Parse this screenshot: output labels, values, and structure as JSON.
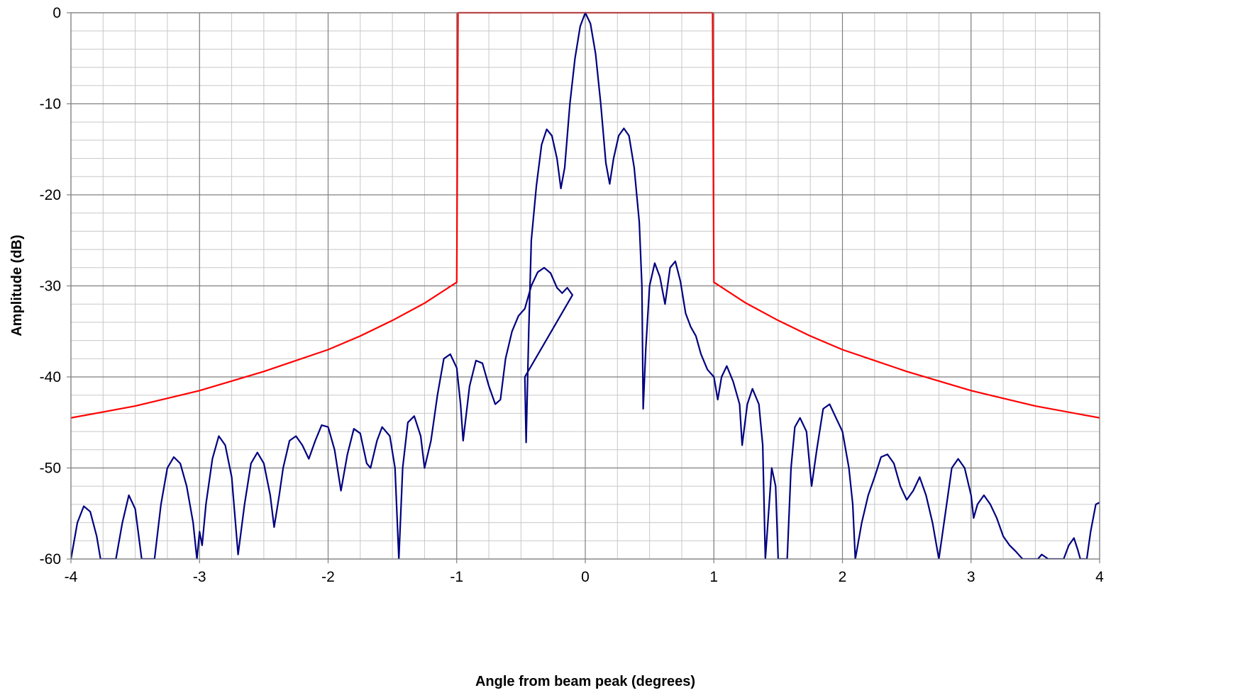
{
  "chart_data": {
    "type": "line",
    "title": "",
    "xlabel": "Angle from beam peak (degrees)",
    "ylabel": "Amplitude (dB)",
    "xlim": [
      -4,
      4
    ],
    "ylim": [
      -60,
      0
    ],
    "x_ticks": [
      -4,
      -3,
      -2,
      -1,
      0,
      1,
      2,
      3,
      4
    ],
    "y_ticks": [
      0,
      -10,
      -20,
      -30,
      -40,
      -50,
      -60
    ],
    "x_tick_labels": [
      "-4",
      "-3",
      "-2",
      "-1",
      "0",
      "1",
      "2",
      "3",
      "4"
    ],
    "y_tick_labels": [
      "0",
      "-10",
      "-20",
      "-30",
      "-40",
      "-50",
      "-60"
    ],
    "grid": {
      "major": true,
      "minor": true,
      "x_minor_step": 0.25,
      "y_minor_step": 2
    },
    "legend": "none",
    "colors": {
      "mask": "#ff0000",
      "pattern": "#000080",
      "major_grid": "#7f7f7f",
      "minor_grid": "#c8c8c8"
    },
    "series": [
      {
        "role": "mask",
        "color": "#ff0000",
        "points": [
          [
            -4.0,
            -44.5
          ],
          [
            -3.5,
            -43.2
          ],
          [
            -3.0,
            -41.5
          ],
          [
            -2.5,
            -39.4
          ],
          [
            -2.0,
            -37.0
          ],
          [
            -1.75,
            -35.5
          ],
          [
            -1.5,
            -33.8
          ],
          [
            -1.25,
            -31.9
          ],
          [
            -1.0,
            -29.6
          ],
          [
            -0.99,
            0
          ],
          [
            0.99,
            0
          ],
          [
            1.0,
            -29.6
          ],
          [
            1.25,
            -31.9
          ],
          [
            1.5,
            -33.8
          ],
          [
            1.75,
            -35.5
          ],
          [
            2.0,
            -37.0
          ],
          [
            2.5,
            -39.4
          ],
          [
            3.0,
            -41.5
          ],
          [
            3.5,
            -43.2
          ],
          [
            4.0,
            -44.5
          ]
        ]
      },
      {
        "role": "pattern",
        "color": "#000080",
        "points": [
          [
            -4.0,
            -60
          ],
          [
            -3.95,
            -56
          ],
          [
            -3.9,
            -54.2
          ],
          [
            -3.85,
            -54.8
          ],
          [
            -3.8,
            -57.5
          ],
          [
            -3.77,
            -60
          ],
          [
            -3.65,
            -60
          ],
          [
            -3.6,
            -56
          ],
          [
            -3.55,
            -53
          ],
          [
            -3.5,
            -54.5
          ],
          [
            -3.45,
            -60
          ],
          [
            -3.35,
            -60
          ],
          [
            -3.3,
            -54
          ],
          [
            -3.25,
            -50
          ],
          [
            -3.2,
            -48.8
          ],
          [
            -3.15,
            -49.5
          ],
          [
            -3.1,
            -52
          ],
          [
            -3.05,
            -56
          ],
          [
            -3.02,
            -60
          ],
          [
            -3.0,
            -57
          ],
          [
            -2.98,
            -58.5
          ],
          [
            -2.95,
            -54
          ],
          [
            -2.9,
            -49
          ],
          [
            -2.85,
            -46.5
          ],
          [
            -2.8,
            -47.5
          ],
          [
            -2.75,
            -51
          ],
          [
            -2.7,
            -59.5
          ],
          [
            -2.65,
            -54
          ],
          [
            -2.6,
            -49.5
          ],
          [
            -2.55,
            -48.3
          ],
          [
            -2.5,
            -49.5
          ],
          [
            -2.45,
            -53
          ],
          [
            -2.42,
            -56.5
          ],
          [
            -2.38,
            -53
          ],
          [
            -2.35,
            -50
          ],
          [
            -2.3,
            -47
          ],
          [
            -2.25,
            -46.5
          ],
          [
            -2.2,
            -47.5
          ],
          [
            -2.15,
            -49
          ],
          [
            -2.1,
            -47
          ],
          [
            -2.05,
            -45.3
          ],
          [
            -2.0,
            -45.5
          ],
          [
            -1.95,
            -48
          ],
          [
            -1.9,
            -52.5
          ],
          [
            -1.85,
            -48.5
          ],
          [
            -1.8,
            -45.7
          ],
          [
            -1.75,
            -46.2
          ],
          [
            -1.7,
            -49.5
          ],
          [
            -1.67,
            -50
          ],
          [
            -1.62,
            -47
          ],
          [
            -1.58,
            -45.5
          ],
          [
            -1.52,
            -46.5
          ],
          [
            -1.48,
            -50
          ],
          [
            -1.45,
            -60
          ],
          [
            -1.42,
            -50
          ],
          [
            -1.38,
            -45
          ],
          [
            -1.33,
            -44.3
          ],
          [
            -1.28,
            -46.5
          ],
          [
            -1.25,
            -50
          ],
          [
            -1.2,
            -47
          ],
          [
            -1.15,
            -42
          ],
          [
            -1.1,
            -38
          ],
          [
            -1.05,
            -37.5
          ],
          [
            -1.0,
            -39
          ],
          [
            -0.97,
            -43
          ],
          [
            -0.95,
            -47
          ],
          [
            -0.9,
            -41
          ],
          [
            -0.85,
            -38.2
          ],
          [
            -0.8,
            -38.5
          ],
          [
            -0.75,
            -41
          ],
          [
            -0.7,
            -43
          ],
          [
            -0.66,
            -42.5
          ],
          [
            -0.62,
            -38
          ],
          [
            -0.57,
            -35
          ],
          [
            -0.52,
            -33.3
          ],
          [
            -0.47,
            -32.5
          ],
          [
            -0.42,
            -30
          ],
          [
            -0.37,
            -28.5
          ],
          [
            -0.32,
            -28
          ],
          [
            -0.27,
            -28.6
          ],
          [
            -0.22,
            -30.2
          ],
          [
            -0.18,
            -30.8
          ],
          [
            -0.14,
            -30.2
          ],
          [
            -0.1,
            -31
          ],
          [
            -0.47,
            -40
          ],
          [
            -0.46,
            -47.2
          ],
          [
            -0.44,
            -35
          ],
          [
            -0.42,
            -25
          ],
          [
            -0.38,
            -19
          ],
          [
            -0.34,
            -14.5
          ],
          [
            -0.3,
            -12.8
          ],
          [
            -0.26,
            -13.5
          ],
          [
            -0.22,
            -16
          ],
          [
            -0.19,
            -19.3
          ],
          [
            -0.16,
            -17
          ],
          [
            -0.12,
            -10
          ],
          [
            -0.08,
            -5
          ],
          [
            -0.04,
            -1.5
          ],
          [
            0.0,
            0
          ],
          [
            0.04,
            -1.2
          ],
          [
            0.08,
            -4.5
          ],
          [
            0.12,
            -10
          ],
          [
            0.16,
            -16.5
          ],
          [
            0.19,
            -18.8
          ],
          [
            0.22,
            -16
          ],
          [
            0.26,
            -13.5
          ],
          [
            0.3,
            -12.7
          ],
          [
            0.34,
            -13.5
          ],
          [
            0.38,
            -17
          ],
          [
            0.42,
            -23
          ],
          [
            0.44,
            -30
          ],
          [
            0.45,
            -43.5
          ],
          [
            0.47,
            -37
          ],
          [
            0.5,
            -30
          ],
          [
            0.54,
            -27.5
          ],
          [
            0.58,
            -29
          ],
          [
            0.62,
            -32
          ],
          [
            0.66,
            -28
          ],
          [
            0.7,
            -27.3
          ],
          [
            0.74,
            -29.5
          ],
          [
            0.78,
            -33
          ],
          [
            0.82,
            -34.5
          ],
          [
            0.86,
            -35.5
          ],
          [
            0.9,
            -37.5
          ],
          [
            0.95,
            -39.2
          ],
          [
            1.0,
            -40
          ],
          [
            1.03,
            -42.5
          ],
          [
            1.06,
            -40
          ],
          [
            1.1,
            -38.8
          ],
          [
            1.15,
            -40.5
          ],
          [
            1.2,
            -43
          ],
          [
            1.22,
            -47.5
          ],
          [
            1.26,
            -43
          ],
          [
            1.3,
            -41.3
          ],
          [
            1.35,
            -43
          ],
          [
            1.38,
            -47.5
          ],
          [
            1.4,
            -60
          ],
          [
            1.45,
            -50
          ],
          [
            1.48,
            -52
          ],
          [
            1.5,
            -60
          ],
          [
            1.57,
            -60
          ],
          [
            1.6,
            -50
          ],
          [
            1.63,
            -45.5
          ],
          [
            1.67,
            -44.5
          ],
          [
            1.72,
            -46
          ],
          [
            1.76,
            -52
          ],
          [
            1.8,
            -48
          ],
          [
            1.85,
            -43.5
          ],
          [
            1.9,
            -43
          ],
          [
            1.95,
            -44.5
          ],
          [
            2.0,
            -46
          ],
          [
            2.05,
            -50
          ],
          [
            2.08,
            -54
          ],
          [
            2.1,
            -60
          ],
          [
            2.15,
            -56
          ],
          [
            2.2,
            -53
          ],
          [
            2.25,
            -51
          ],
          [
            2.3,
            -48.8
          ],
          [
            2.35,
            -48.5
          ],
          [
            2.4,
            -49.5
          ],
          [
            2.45,
            -52
          ],
          [
            2.5,
            -53.5
          ],
          [
            2.55,
            -52.5
          ],
          [
            2.6,
            -51
          ],
          [
            2.65,
            -53
          ],
          [
            2.7,
            -56
          ],
          [
            2.75,
            -60
          ],
          [
            2.8,
            -55
          ],
          [
            2.85,
            -50
          ],
          [
            2.9,
            -49
          ],
          [
            2.95,
            -50
          ],
          [
            3.0,
            -53
          ],
          [
            3.02,
            -55.5
          ],
          [
            3.05,
            -54
          ],
          [
            3.1,
            -53
          ],
          [
            3.15,
            -54
          ],
          [
            3.2,
            -55.5
          ],
          [
            3.25,
            -57.5
          ],
          [
            3.3,
            -58.5
          ],
          [
            3.35,
            -59.2
          ],
          [
            3.4,
            -60
          ],
          [
            3.52,
            -60
          ],
          [
            3.55,
            -59.5
          ],
          [
            3.6,
            -60
          ],
          [
            3.72,
            -60
          ],
          [
            3.76,
            -58.5
          ],
          [
            3.8,
            -57.7
          ],
          [
            3.83,
            -59
          ],
          [
            3.85,
            -60
          ],
          [
            3.9,
            -60
          ],
          [
            3.93,
            -57
          ],
          [
            3.97,
            -54
          ],
          [
            4.0,
            -53.8
          ]
        ]
      }
    ]
  }
}
